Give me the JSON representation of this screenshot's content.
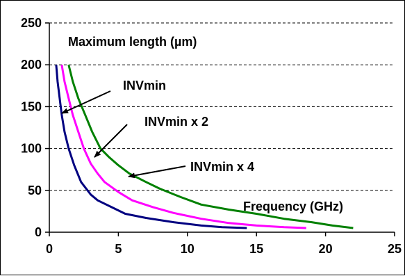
{
  "chart_data": {
    "type": "line",
    "title": "",
    "xlabel": "Frequency (GHz)",
    "ylabel": "Maximum length (µm)",
    "xlim": [
      0,
      25
    ],
    "ylim": [
      0,
      250
    ],
    "x_ticks": [
      0,
      5,
      10,
      15,
      20,
      25
    ],
    "y_ticks": [
      0,
      50,
      100,
      150,
      200,
      250
    ],
    "grid": "horizontal dashed",
    "legend": "none",
    "series": [
      {
        "name": "INVmin",
        "color": "#000080",
        "points": [
          [
            0.5,
            200
          ],
          [
            0.6,
            180
          ],
          [
            0.75,
            160
          ],
          [
            0.9,
            140
          ],
          [
            1.1,
            120
          ],
          [
            1.4,
            100
          ],
          [
            1.8,
            80
          ],
          [
            2.3,
            60
          ],
          [
            3,
            45
          ],
          [
            3.5,
            38
          ],
          [
            4.5,
            30
          ],
          [
            5.5,
            22
          ],
          [
            7,
            17
          ],
          [
            9,
            12
          ],
          [
            11,
            8
          ],
          [
            12.5,
            6
          ],
          [
            14.3,
            5
          ]
        ]
      },
      {
        "name": "INVmin x 2",
        "color": "#ff00ff",
        "points": [
          [
            0.9,
            200
          ],
          [
            1.1,
            180
          ],
          [
            1.4,
            160
          ],
          [
            1.7,
            140
          ],
          [
            2.1,
            120
          ],
          [
            2.5,
            100
          ],
          [
            3,
            82
          ],
          [
            3.5,
            70
          ],
          [
            4,
            60
          ],
          [
            5,
            48
          ],
          [
            6,
            38
          ],
          [
            7.5,
            30
          ],
          [
            9,
            23
          ],
          [
            11,
            16
          ],
          [
            13,
            11
          ],
          [
            15,
            8
          ],
          [
            17,
            6
          ],
          [
            18.6,
            5
          ]
        ]
      },
      {
        "name": "INVmin x 4",
        "color": "#008000",
        "points": [
          [
            1.4,
            200
          ],
          [
            1.7,
            180
          ],
          [
            2.1,
            160
          ],
          [
            2.6,
            140
          ],
          [
            3.1,
            120
          ],
          [
            3.7,
            100
          ],
          [
            4.3,
            90
          ],
          [
            5,
            80
          ],
          [
            5.8,
            70
          ],
          [
            7,
            60
          ],
          [
            8,
            52
          ],
          [
            9.5,
            42
          ],
          [
            11,
            33
          ],
          [
            13,
            27
          ],
          [
            15,
            22
          ],
          [
            17,
            16
          ],
          [
            19,
            12
          ],
          [
            20.5,
            8
          ],
          [
            22,
            5
          ]
        ]
      }
    ],
    "annotations": [
      {
        "text": "INVmin",
        "points_to": "INVmin"
      },
      {
        "text": "INVmin x 2",
        "points_to": "INVmin x 2"
      },
      {
        "text": "INVmin x 4",
        "points_to": "INVmin x 4"
      }
    ]
  }
}
